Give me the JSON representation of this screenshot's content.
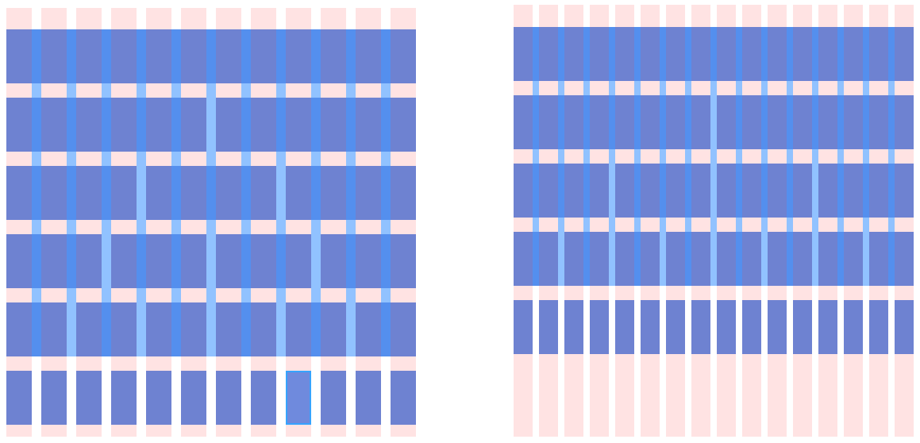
{
  "diagram": {
    "grid_12": {
      "columns": 12,
      "rows": [
        1,
        2,
        3,
        4,
        6,
        12
      ],
      "selected_row": 5,
      "selected_item": 8
    },
    "grid_16": {
      "columns": 16,
      "rows": [
        1,
        2,
        4,
        8,
        16
      ]
    },
    "colors": {
      "column": "#ffe1e1",
      "block": "#4e6ccd",
      "gutter_overlay": "#4296ff",
      "selected_outline": "#36a3ff"
    }
  }
}
